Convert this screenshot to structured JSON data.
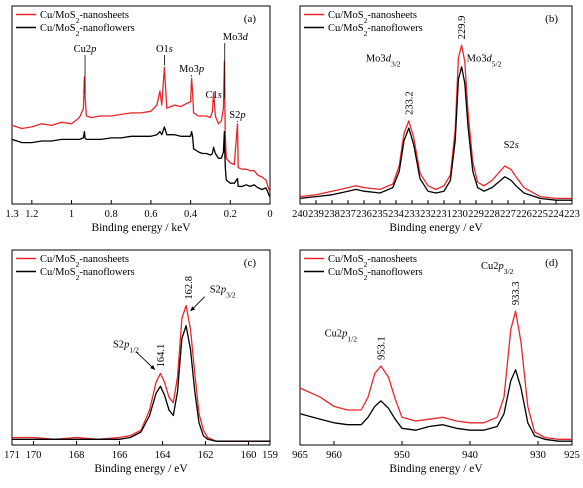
{
  "chart_data": [
    {
      "panel": "(a)",
      "type": "line",
      "xlabel": "Binding energy / keV",
      "xlim": [
        1.3,
        0
      ],
      "x_reversed": true,
      "xticks": [
        "1.3",
        "1.2",
        "1",
        "0.8",
        "0.6",
        "0.4",
        "0.2",
        "0"
      ],
      "xtick_values": [
        1.3,
        1.2,
        1.0,
        0.8,
        0.6,
        0.4,
        0.2,
        0.0
      ],
      "ylim": [
        0,
        100
      ],
      "legend": "top-left",
      "series": [
        {
          "name": "Cu/MoS2-nanosheets",
          "color": "#e8262a",
          "x": [
            1.3,
            1.25,
            1.2,
            1.15,
            1.1,
            1.05,
            1.0,
            0.96,
            0.94,
            0.935,
            0.932,
            0.925,
            0.9,
            0.85,
            0.8,
            0.75,
            0.7,
            0.65,
            0.6,
            0.57,
            0.555,
            0.545,
            0.532,
            0.52,
            0.5,
            0.48,
            0.45,
            0.42,
            0.4,
            0.395,
            0.39,
            0.385,
            0.36,
            0.34,
            0.32,
            0.3,
            0.29,
            0.284,
            0.275,
            0.26,
            0.245,
            0.235,
            0.23,
            0.228,
            0.225,
            0.22,
            0.2,
            0.18,
            0.164,
            0.16,
            0.14,
            0.12,
            0.1,
            0.08,
            0.06,
            0.04,
            0.02,
            0.0
          ],
          "y": [
            49,
            47,
            48,
            50,
            49,
            51,
            50,
            54,
            60,
            80,
            68,
            55,
            54,
            55,
            55,
            56,
            57,
            57,
            58,
            62,
            71,
            62,
            86,
            60,
            61,
            62,
            61,
            63,
            64,
            79,
            70,
            57,
            55,
            55,
            55,
            54,
            58,
            70,
            55,
            50,
            52,
            60,
            90,
            65,
            42,
            28,
            25,
            24,
            50,
            22,
            21,
            21,
            20,
            20,
            17,
            16,
            14,
            6
          ]
        },
        {
          "name": "Cu/MoS2-nanoflowers",
          "color": "#000000",
          "x": [
            1.3,
            1.25,
            1.2,
            1.15,
            1.1,
            1.05,
            1.0,
            0.96,
            0.94,
            0.935,
            0.932,
            0.925,
            0.9,
            0.85,
            0.8,
            0.75,
            0.7,
            0.65,
            0.6,
            0.57,
            0.555,
            0.545,
            0.532,
            0.52,
            0.5,
            0.48,
            0.45,
            0.42,
            0.4,
            0.395,
            0.39,
            0.385,
            0.36,
            0.34,
            0.32,
            0.3,
            0.29,
            0.284,
            0.275,
            0.26,
            0.245,
            0.235,
            0.23,
            0.228,
            0.225,
            0.22,
            0.2,
            0.18,
            0.164,
            0.16,
            0.14,
            0.12,
            0.1,
            0.08,
            0.06,
            0.04,
            0.02,
            0.0
          ],
          "y": [
            40,
            38,
            38,
            39,
            39,
            40,
            40,
            40,
            41,
            45,
            41,
            40,
            40,
            40,
            41,
            41,
            42,
            42,
            42,
            43,
            45,
            43,
            48,
            43,
            43,
            43,
            42,
            42,
            42,
            45,
            42,
            34,
            32,
            31,
            31,
            30,
            31,
            35,
            31,
            28,
            28,
            32,
            45,
            32,
            22,
            14,
            12,
            12,
            15,
            10,
            10,
            11,
            10,
            11,
            9,
            8,
            9,
            3
          ]
        }
      ],
      "annotations": [
        {
          "text": "Cu2",
          "italic": "p",
          "x": 0.932
        },
        {
          "text": "O1",
          "italic": "s",
          "x": 0.532
        },
        {
          "text": "Mo3",
          "italic": "p",
          "x": 0.395
        },
        {
          "text": "Mo3",
          "italic": "d",
          "x": 0.228
        },
        {
          "text": "C1",
          "italic": "s",
          "x": 0.284
        },
        {
          "text": "S2",
          "italic": "p",
          "x": 0.164
        }
      ]
    },
    {
      "panel": "(b)",
      "type": "line",
      "xlabel": "Binding energy / eV",
      "xlim": [
        240,
        223
      ],
      "x_reversed": true,
      "xticks": [
        "240",
        "239",
        "238",
        "237",
        "236",
        "235",
        "234",
        "233",
        "232",
        "231",
        "230",
        "229",
        "228",
        "227",
        "226",
        "225",
        "224",
        "223"
      ],
      "xtick_values": [
        240,
        239,
        238,
        237,
        236,
        235,
        234,
        233,
        232,
        231,
        230,
        229,
        228,
        227,
        226,
        225,
        224,
        223
      ],
      "ylim": [
        0,
        100
      ],
      "legend": "top-left",
      "series": [
        {
          "name": "Cu/MoS2-nanosheets",
          "color": "#e8262a",
          "x": [
            240,
            239,
            238,
            237,
            236.5,
            236,
            235,
            234.2,
            233.8,
            233.5,
            233.2,
            232.9,
            232.5,
            232,
            231.5,
            231,
            230.6,
            230.3,
            230.1,
            229.9,
            229.7,
            229.5,
            229.2,
            228.9,
            228.5,
            228,
            227.6,
            227.2,
            226.8,
            226.5,
            226,
            225,
            224,
            223
          ],
          "y": [
            3,
            4,
            6,
            8,
            9,
            8,
            7,
            10,
            20,
            38,
            45,
            36,
            16,
            9,
            7,
            9,
            15,
            40,
            80,
            87,
            78,
            50,
            22,
            11,
            9,
            12,
            16,
            20,
            18,
            14,
            8,
            3,
            2,
            2
          ]
        },
        {
          "name": "Cu/MoS2-nanoflowers",
          "color": "#000000",
          "x": [
            240,
            239,
            238,
            237,
            236.5,
            236,
            235,
            234.2,
            233.8,
            233.5,
            233.2,
            232.9,
            232.5,
            232,
            231.5,
            231,
            230.6,
            230.3,
            230.1,
            229.9,
            229.7,
            229.5,
            229.2,
            228.9,
            228.5,
            228,
            227.6,
            227.2,
            226.8,
            226.5,
            226,
            225,
            224,
            223
          ],
          "y": [
            2,
            3,
            4,
            6,
            7,
            6,
            5,
            8,
            17,
            34,
            41,
            32,
            13,
            6,
            5,
            6,
            12,
            34,
            68,
            75,
            66,
            42,
            17,
            8,
            6,
            8,
            11,
            14,
            12,
            9,
            5,
            2,
            1,
            1
          ]
        }
      ],
      "annotations": [
        {
          "text": "233.2",
          "x": 233.2,
          "rotated": true
        },
        {
          "text": "229.9",
          "x": 229.9,
          "rotated": true
        },
        {
          "text": "Mo3",
          "italic": "d",
          "sub": "3/2",
          "x": 234.8
        },
        {
          "text": "Mo3",
          "italic": "d",
          "sub": "5/2",
          "x": 228.5
        },
        {
          "text": "S2",
          "italic": "s",
          "x": 226.8
        }
      ]
    },
    {
      "panel": "(c)",
      "type": "line",
      "xlabel": "Binding energy / eV",
      "xlim": [
        171,
        159
      ],
      "x_reversed": true,
      "xticks": [
        "171",
        "170",
        "168",
        "166",
        "164",
        "162",
        "160",
        "159"
      ],
      "xtick_values": [
        171,
        170,
        168,
        166,
        164,
        162,
        160,
        159
      ],
      "ylim": [
        0,
        100
      ],
      "legend": "top-left",
      "series": [
        {
          "name": "Cu/MoS2-nanosheets",
          "color": "#e8262a",
          "x": [
            171,
            170,
            169,
            168,
            167,
            166,
            165.5,
            165,
            164.6,
            164.3,
            164.1,
            163.9,
            163.7,
            163.5,
            163.3,
            163.1,
            162.9,
            162.7,
            162.5,
            162.3,
            162.1,
            161.9,
            161.5,
            161,
            160.5,
            160,
            159.5,
            159
          ],
          "y": [
            3,
            3,
            2,
            3,
            2,
            3,
            4,
            7,
            18,
            33,
            38,
            33,
            25,
            22,
            36,
            68,
            75,
            62,
            38,
            16,
            7,
            3,
            1,
            1,
            1,
            1,
            1,
            1
          ]
        },
        {
          "name": "Cu/MoS2-nanoflowers",
          "color": "#000000",
          "x": [
            171,
            170,
            169,
            168,
            167,
            166,
            165.5,
            165,
            164.6,
            164.3,
            164.1,
            163.9,
            163.7,
            163.5,
            163.3,
            163.1,
            162.9,
            162.7,
            162.5,
            162.3,
            162.1,
            161.9,
            161.5,
            161,
            160.5,
            160,
            159.5,
            159
          ],
          "y": [
            2,
            2,
            2,
            2,
            2,
            2,
            3,
            6,
            15,
            27,
            31,
            26,
            18,
            15,
            28,
            57,
            64,
            51,
            28,
            11,
            4,
            2,
            1,
            1,
            1,
            1,
            1,
            1
          ]
        }
      ],
      "annotations": [
        {
          "text": "164.1",
          "x": 164.1,
          "rotated": true
        },
        {
          "text": "162.8",
          "x": 162.8,
          "rotated": true
        },
        {
          "text": "S2",
          "italic": "p",
          "sub": "1/2",
          "x": 165.7
        },
        {
          "text": "S2",
          "italic": "p",
          "sub": "3/2",
          "x": 161.2
        }
      ]
    },
    {
      "panel": "(d)",
      "type": "line",
      "xlabel": "Binding energy / eV",
      "xlim": [
        965,
        925
      ],
      "x_reversed": true,
      "xticks": [
        "965",
        "960",
        "950",
        "940",
        "930",
        "925"
      ],
      "xtick_values": [
        965,
        960,
        950,
        940,
        930,
        925
      ],
      "ylim": [
        0,
        100
      ],
      "legend": "top-left",
      "series": [
        {
          "name": "Cu/MoS2-nanosheets",
          "color": "#e8262a",
          "x": [
            965,
            962,
            960,
            958,
            956,
            955,
            954,
            953.1,
            952,
            951,
            950,
            948,
            946,
            944,
            942,
            940,
            938,
            936,
            935,
            934,
            933.3,
            932.5,
            931.5,
            930.5,
            929,
            927,
            925
          ],
          "y": [
            30,
            25,
            20,
            18,
            18,
            25,
            38,
            42,
            36,
            24,
            14,
            12,
            13,
            14,
            12,
            11,
            11,
            14,
            25,
            62,
            72,
            55,
            20,
            6,
            3,
            2,
            2
          ]
        },
        {
          "name": "Cu/MoS2-nanoflowers",
          "color": "#000000",
          "x": [
            965,
            962,
            960,
            958,
            956,
            955,
            954,
            953.1,
            952,
            951,
            950,
            948,
            946,
            944,
            942,
            940,
            938,
            936,
            935,
            934,
            933.3,
            932.5,
            931.5,
            930.5,
            929,
            927,
            925
          ],
          "y": [
            16,
            13,
            11,
            10,
            10,
            14,
            20,
            23,
            19,
            13,
            8,
            7,
            9,
            10,
            8,
            7,
            7,
            9,
            16,
            34,
            40,
            30,
            11,
            4,
            2,
            1,
            1
          ]
        }
      ],
      "annotations": [
        {
          "text": "953.1",
          "x": 953.1,
          "rotated": true
        },
        {
          "text": "933.3",
          "x": 933.3,
          "rotated": true
        },
        {
          "text": "Cu2",
          "italic": "p",
          "sub": "1/2",
          "x": 959
        },
        {
          "text": "Cu2",
          "italic": "p",
          "sub": "3/2",
          "x": 936
        }
      ]
    }
  ]
}
